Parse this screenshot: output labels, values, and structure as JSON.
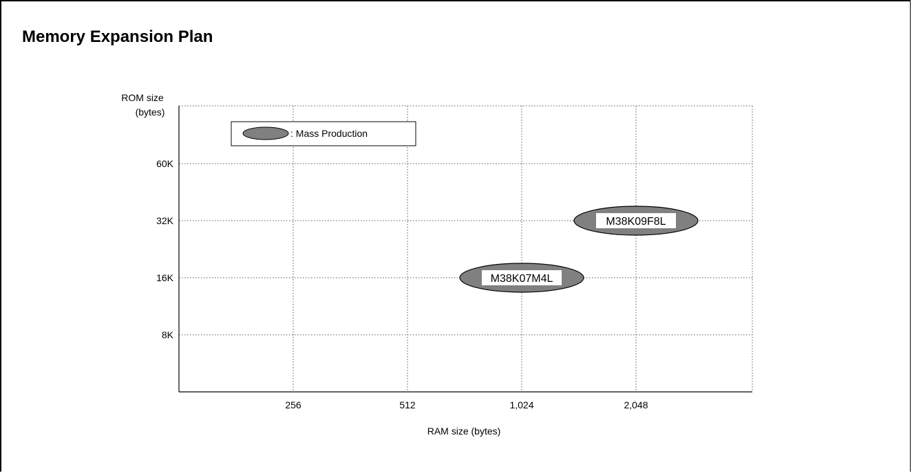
{
  "page": {
    "title": "Memory Expansion Plan"
  },
  "chart_data": {
    "type": "scatter",
    "title": "Memory Expansion Plan",
    "xlabel": "RAM size (bytes)",
    "ylabel_line1": "ROM size",
    "ylabel_line2": "(bytes)",
    "x_categories": [
      "256",
      "512",
      "1,024",
      "2,048"
    ],
    "y_categories": [
      "8K",
      "16K",
      "32K",
      "60K"
    ],
    "grid": true,
    "grid_style": "dotted",
    "legend": {
      "placement": "top-left",
      "entries": [
        {
          "label": ": Mass Production",
          "fill": "#808080"
        }
      ]
    },
    "points": [
      {
        "label": "M38K07M4L",
        "x": "1,024",
        "y": "16K",
        "status": "Mass Production"
      },
      {
        "label": "M38K09F8L",
        "x": "2,048",
        "y": "32K",
        "status": "Mass Production"
      }
    ],
    "colors": {
      "ellipse_fill": "#808080",
      "grid": "#555555",
      "axis": "#000000"
    }
  }
}
